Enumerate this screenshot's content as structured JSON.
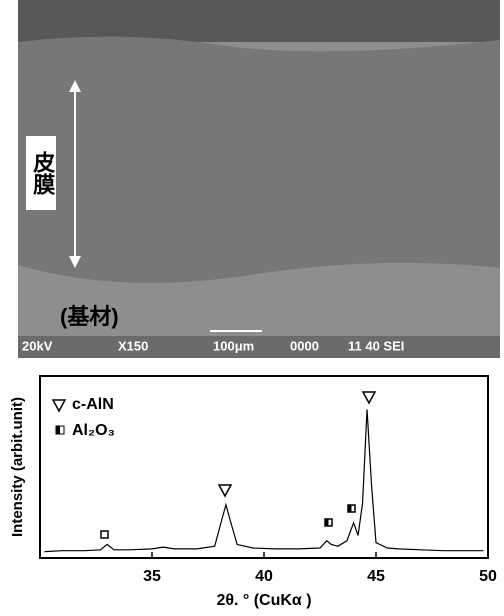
{
  "image": {
    "coating_label": "皮膜",
    "substrate_label": "(基材)",
    "voltage": "20kV",
    "magnification": "X150",
    "scale": "100μm",
    "code": "0000",
    "info": "11 40 SEI"
  },
  "chart_data": {
    "type": "line",
    "xlabel": "2θ. ° (CuKα )",
    "ylabel": "Intensity (arbit.unit)",
    "legend": [
      "c-AlN",
      "Al₂O₃"
    ],
    "x": [
      30.2,
      31,
      32,
      32.7,
      33,
      33.3,
      34,
      35,
      35.5,
      36,
      37,
      37.8,
      38.1,
      38.3,
      38.5,
      38.8,
      39.5,
      40.5,
      41.5,
      42.5,
      42.8,
      43.0,
      43.3,
      43.7,
      44.0,
      44.2,
      44.4,
      44.6,
      44.8,
      45.0,
      45.5,
      46,
      47,
      48,
      49,
      49.8
    ],
    "series": [
      {
        "color": "#000000",
        "values": [
          3,
          3.5,
          3.5,
          4,
          7,
          4,
          4,
          4.5,
          5.5,
          4.5,
          4.5,
          6,
          20,
          29,
          20,
          7,
          5,
          4.5,
          4.5,
          5,
          9,
          7,
          6,
          9,
          19,
          12,
          30,
          82,
          40,
          8,
          5,
          4.5,
          4,
          3.5,
          3.5,
          3.5
        ]
      }
    ],
    "xlim": [
      30,
      50
    ],
    "xticks": [
      35,
      40,
      45,
      50
    ],
    "ylim": [
      0,
      100
    ]
  }
}
